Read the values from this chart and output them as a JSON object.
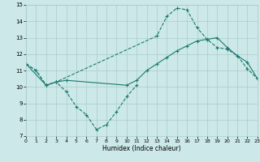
{
  "xlabel": "Humidex (Indice chaleur)",
  "bg_color": "#cce8e8",
  "grid_color": "#aacccc",
  "line_color": "#1a7a6e",
  "xmin": 0,
  "xmax": 23,
  "ymin": 7,
  "ymax": 15,
  "line1_x": [
    0,
    1,
    2,
    3,
    4,
    5,
    6,
    7,
    8,
    9,
    10,
    11
  ],
  "line1_y": [
    11.4,
    11.0,
    10.1,
    10.3,
    9.7,
    8.8,
    8.3,
    7.4,
    7.7,
    8.5,
    9.4,
    10.1
  ],
  "line2_x": [
    0,
    2,
    3,
    4,
    10,
    11,
    12,
    13,
    14,
    15,
    16,
    17,
    18,
    19,
    20,
    21,
    22,
    23
  ],
  "line2_y": [
    11.4,
    10.1,
    10.3,
    10.4,
    10.1,
    10.4,
    11.0,
    11.4,
    11.8,
    12.2,
    12.5,
    12.8,
    12.9,
    13.0,
    12.4,
    11.9,
    11.5,
    10.5
  ],
  "line3_x": [
    0,
    1,
    2,
    3,
    13,
    14,
    15,
    16,
    17,
    18,
    19,
    20,
    21,
    22,
    23
  ],
  "line3_y": [
    11.4,
    11.0,
    10.1,
    10.3,
    13.1,
    14.3,
    14.8,
    14.7,
    13.6,
    12.9,
    12.4,
    12.3,
    11.9,
    11.1,
    10.5
  ]
}
